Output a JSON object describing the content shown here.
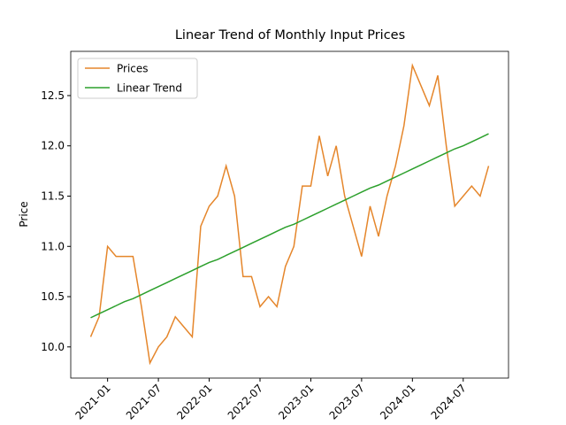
{
  "chart_data": {
    "type": "line",
    "title": "Linear Trend of Monthly Input Prices",
    "ylabel": "Price",
    "x": [
      "2020-11",
      "2020-12",
      "2021-01",
      "2021-02",
      "2021-03",
      "2021-04",
      "2021-05",
      "2021-06",
      "2021-07",
      "2021-08",
      "2021-09",
      "2021-10",
      "2021-11",
      "2021-12",
      "2022-01",
      "2022-02",
      "2022-03",
      "2022-04",
      "2022-05",
      "2022-06",
      "2022-07",
      "2022-08",
      "2022-09",
      "2022-10",
      "2022-11",
      "2022-12",
      "2023-01",
      "2023-02",
      "2023-03",
      "2023-04",
      "2023-05",
      "2023-06",
      "2023-07",
      "2023-08",
      "2023-09",
      "2023-10",
      "2023-11",
      "2023-12",
      "2024-01",
      "2024-02",
      "2024-03",
      "2024-04",
      "2024-05",
      "2024-06",
      "2024-07",
      "2024-08",
      "2024-09",
      "2024-10"
    ],
    "series": [
      {
        "name": "Prices",
        "color": "#e5862b",
        "values": [
          10.1,
          10.3,
          11.0,
          10.9,
          10.9,
          10.9,
          10.4,
          9.84,
          10.0,
          10.1,
          10.3,
          10.2,
          10.1,
          11.2,
          11.4,
          11.5,
          11.8,
          11.5,
          10.7,
          10.7,
          10.4,
          10.5,
          10.4,
          10.8,
          11.0,
          11.6,
          11.6,
          12.1,
          11.7,
          12.0,
          11.5,
          11.2,
          10.9,
          11.4,
          11.1,
          11.5,
          11.8,
          12.2,
          12.8,
          12.6,
          12.4,
          12.7,
          12.0,
          11.4,
          11.5,
          11.6,
          11.5,
          11.8
        ]
      },
      {
        "name": "Linear Trend",
        "color": "#2ca02c",
        "values": [
          10.29,
          10.33,
          10.37,
          10.41,
          10.45,
          10.48,
          10.52,
          10.56,
          10.6,
          10.64,
          10.68,
          10.72,
          10.76,
          10.8,
          10.84,
          10.87,
          10.91,
          10.95,
          10.99,
          11.03,
          11.07,
          11.11,
          11.15,
          11.19,
          11.22,
          11.26,
          11.3,
          11.34,
          11.38,
          11.42,
          11.46,
          11.5,
          11.54,
          11.58,
          11.61,
          11.65,
          11.69,
          11.73,
          11.77,
          11.81,
          11.85,
          11.89,
          11.93,
          11.97,
          12.0,
          12.04,
          12.08,
          12.12
        ]
      }
    ],
    "xticks": [
      "2021-01",
      "2021-07",
      "2022-01",
      "2022-07",
      "2023-01",
      "2023-07",
      "2024-01",
      "2024-07"
    ],
    "ylim": [
      9.69,
      12.94
    ],
    "yticks": [
      {
        "value": 10,
        "label": "10.0"
      },
      10.5,
      {
        "value": 11,
        "label": "11.0"
      },
      11.5,
      {
        "value": 12,
        "label": "12.0"
      },
      12.5
    ],
    "legend": "upper left",
    "grid": false
  }
}
